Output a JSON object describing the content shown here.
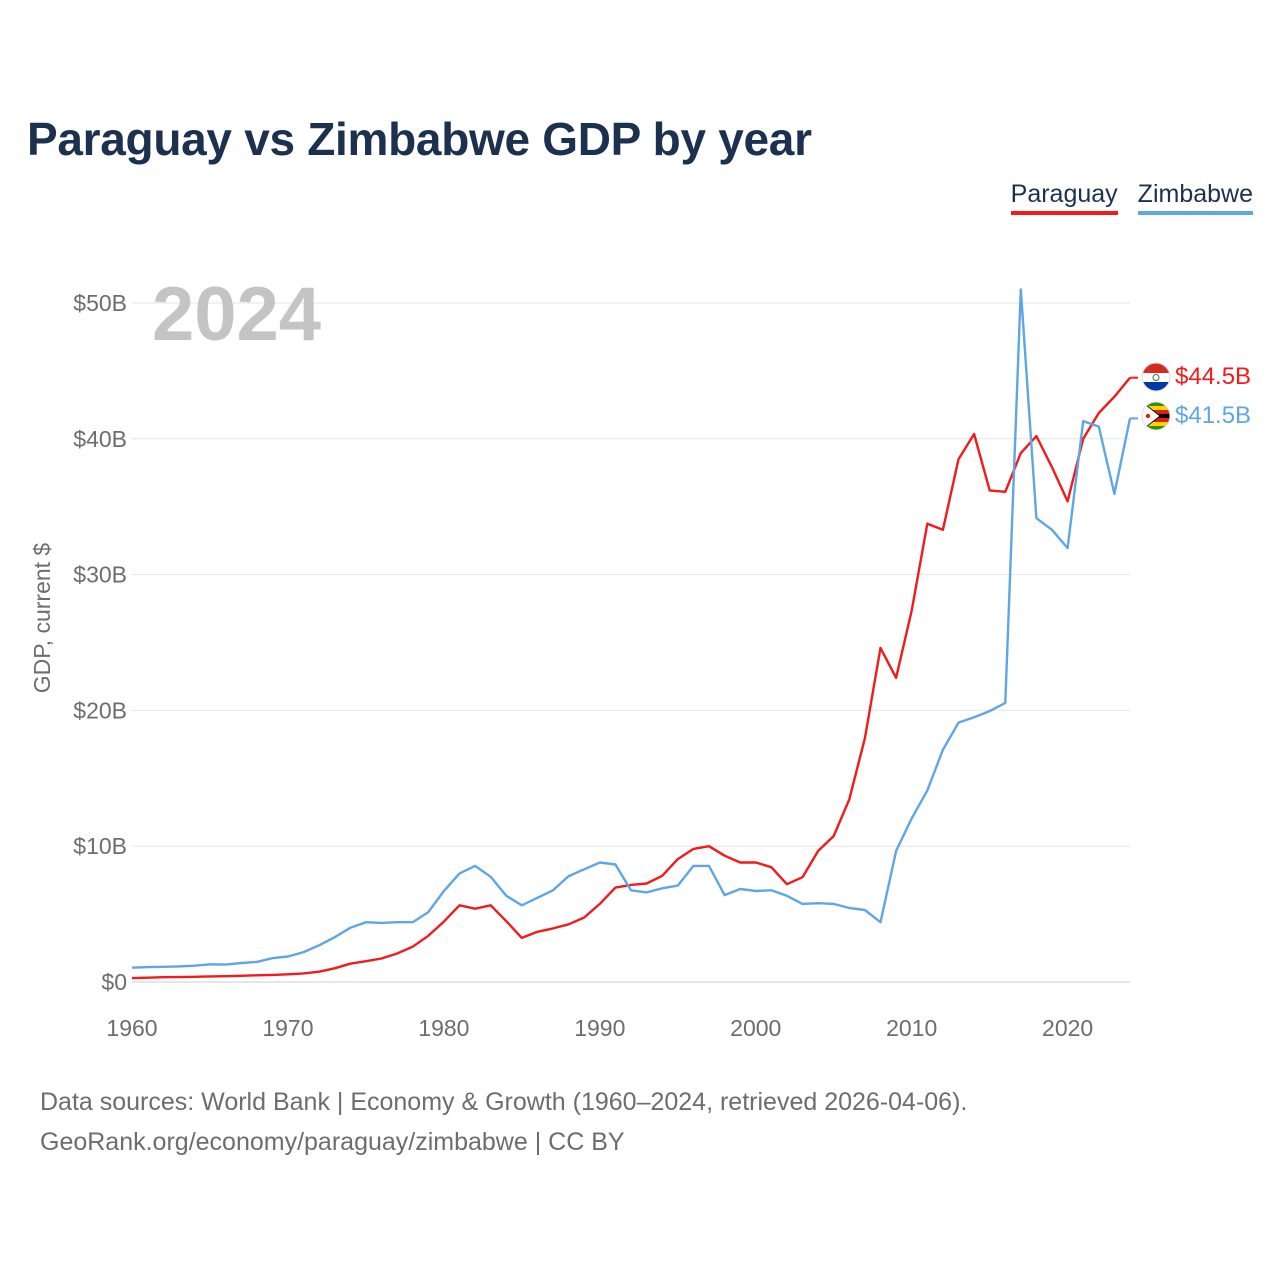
{
  "title": "Paraguay vs Zimbabwe GDP by year",
  "legend": [
    {
      "name": "Paraguay",
      "color": "#f21a1a"
    },
    {
      "name": "Zimbabwe",
      "color": "#5ea6e6"
    }
  ],
  "chart_data": {
    "type": "line",
    "title": "Paraguay vs Zimbabwe GDP by year",
    "ylabel": "GDP, current $",
    "xlabel": "",
    "year_label": "2024",
    "x_ticks": [
      1960,
      1970,
      1980,
      1990,
      2000,
      2010,
      2020
    ],
    "x_tick_labels": [
      "1960",
      "1970",
      "1980",
      "1990",
      "2000",
      "2010",
      "2020"
    ],
    "y_ticks": [
      0,
      10,
      20,
      30,
      40,
      50
    ],
    "y_tick_labels": [
      "$0",
      "$10B",
      "$20B",
      "$30B",
      "$40B",
      "$50B"
    ],
    "xlim": [
      1960,
      2024
    ],
    "ylim": [
      0,
      50
    ],
    "units": "billions USD",
    "x": [
      1960,
      1961,
      1962,
      1963,
      1964,
      1965,
      1966,
      1967,
      1968,
      1969,
      1970,
      1971,
      1972,
      1973,
      1974,
      1975,
      1976,
      1977,
      1978,
      1979,
      1980,
      1981,
      1982,
      1983,
      1984,
      1985,
      1986,
      1987,
      1988,
      1989,
      1990,
      1991,
      1992,
      1993,
      1994,
      1995,
      1996,
      1997,
      1998,
      1999,
      2000,
      2001,
      2002,
      2003,
      2004,
      2005,
      2006,
      2007,
      2008,
      2009,
      2010,
      2011,
      2012,
      2013,
      2014,
      2015,
      2016,
      2017,
      2018,
      2019,
      2020,
      2021,
      2022,
      2023,
      2024
    ],
    "series": [
      {
        "name": "Paraguay",
        "color": "#f21a1a",
        "end_label": "$44.5B",
        "values": [
          0.29,
          0.32,
          0.35,
          0.36,
          0.38,
          0.41,
          0.43,
          0.46,
          0.49,
          0.52,
          0.57,
          0.63,
          0.76,
          1.01,
          1.35,
          1.53,
          1.73,
          2.1,
          2.6,
          3.4,
          4.45,
          5.65,
          5.4,
          5.65,
          4.48,
          3.25,
          3.7,
          3.95,
          4.25,
          4.75,
          5.75,
          6.95,
          7.15,
          7.25,
          7.82,
          9.05,
          9.8,
          10.0,
          9.3,
          8.8,
          8.8,
          8.45,
          7.2,
          7.72,
          9.65,
          10.75,
          13.45,
          17.95,
          24.6,
          22.4,
          27.35,
          33.75,
          33.3,
          38.5,
          40.35,
          36.2,
          36.1,
          38.95,
          40.2,
          37.9,
          35.4,
          40.0,
          41.9,
          43.1,
          44.5
        ]
      },
      {
        "name": "Zimbabwe",
        "color": "#5ea6e6",
        "end_label": "$41.5B",
        "values": [
          1.05,
          1.1,
          1.12,
          1.15,
          1.2,
          1.3,
          1.28,
          1.4,
          1.48,
          1.75,
          1.88,
          2.2,
          2.7,
          3.3,
          3.99,
          4.4,
          4.35,
          4.4,
          4.4,
          5.15,
          6.7,
          8.0,
          8.55,
          7.75,
          6.35,
          5.65,
          6.2,
          6.75,
          7.8,
          8.3,
          8.8,
          8.65,
          6.75,
          6.6,
          6.9,
          7.1,
          8.55,
          8.55,
          6.4,
          6.85,
          6.7,
          6.75,
          6.35,
          5.75,
          5.8,
          5.75,
          5.45,
          5.3,
          4.4,
          9.65,
          12.05,
          14.1,
          17.1,
          19.1,
          19.5,
          19.95,
          20.55,
          51.0,
          34.15,
          33.3,
          31.95,
          41.3,
          40.9,
          35.95,
          41.5
        ]
      }
    ]
  },
  "source": {
    "line1": "Data sources: World Bank | Economy & Growth (1960–2024, retrieved 2026-04-06).",
    "line2": "GeoRank.org/economy/paraguay/zimbabwe | CC BY"
  }
}
